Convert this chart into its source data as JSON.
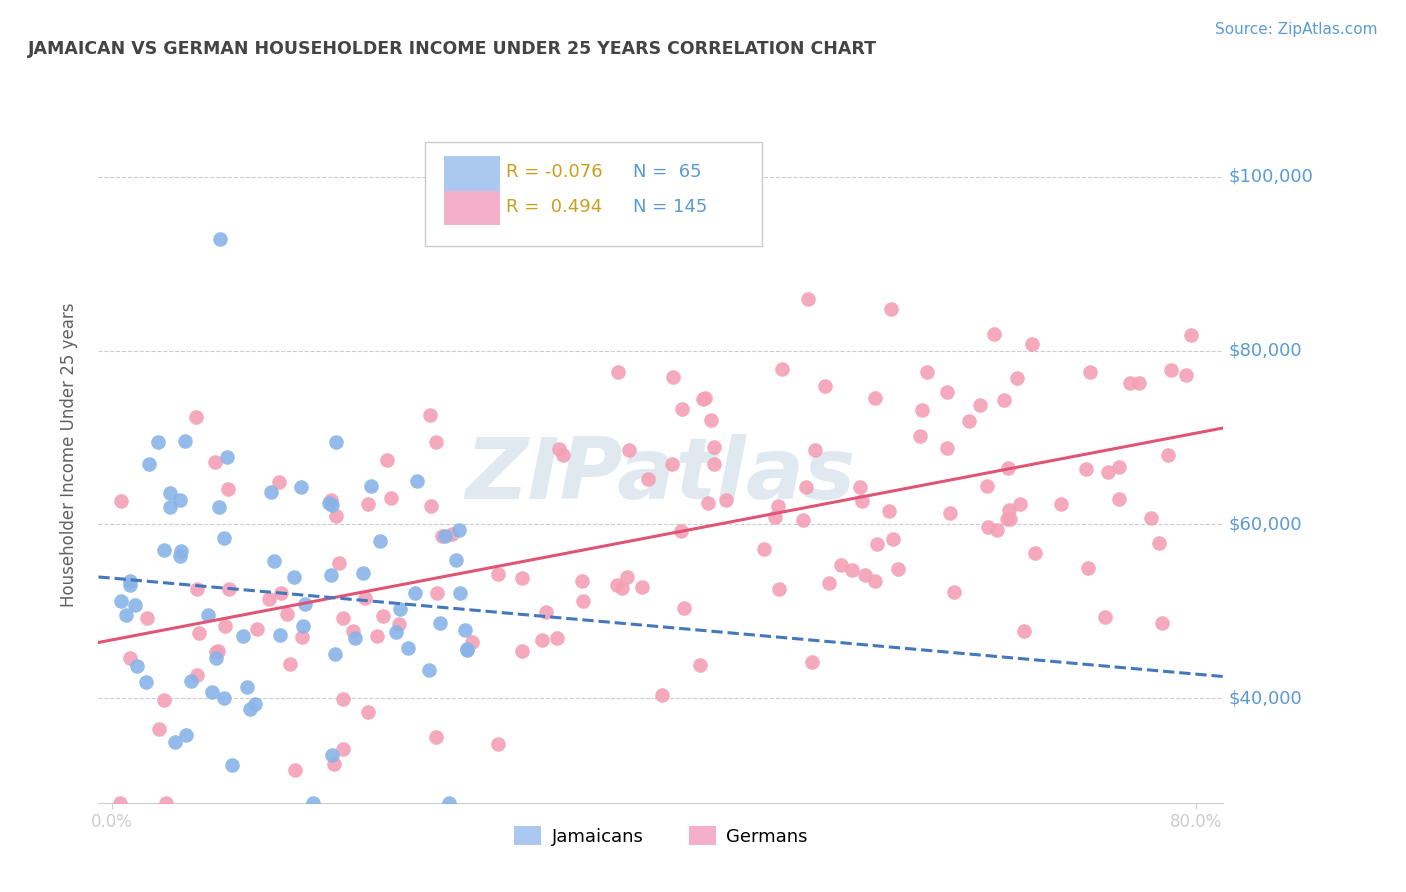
{
  "title": "JAMAICAN VS GERMAN HOUSEHOLDER INCOME UNDER 25 YEARS CORRELATION CHART",
  "source": "Source: ZipAtlas.com",
  "ylabel": "Householder Income Under 25 years",
  "ytick_labels": [
    "$40,000",
    "$60,000",
    "$80,000",
    "$100,000"
  ],
  "ytick_values": [
    40000,
    60000,
    80000,
    100000
  ],
  "ymin": 28000,
  "ymax": 108000,
  "xmin": -0.01,
  "xmax": 0.82,
  "jamaican_R": -0.076,
  "jamaican_N": 65,
  "german_R": 0.494,
  "german_N": 145,
  "jamaican_color": "#88b4e8",
  "german_color": "#f4a0b5",
  "jamaican_line_color": "#4477bb",
  "german_line_color": "#e05575",
  "background_color": "#ffffff",
  "grid_color": "#cccccc",
  "title_color": "#444444",
  "source_color": "#5b9bd5",
  "legend_R_color": "#c8a020",
  "legend_N_color": "#5b9bd5",
  "legend_box_jamaican": "#aac8f0",
  "legend_box_german": "#f4b0c8",
  "watermark_color": "#e0e8f0"
}
